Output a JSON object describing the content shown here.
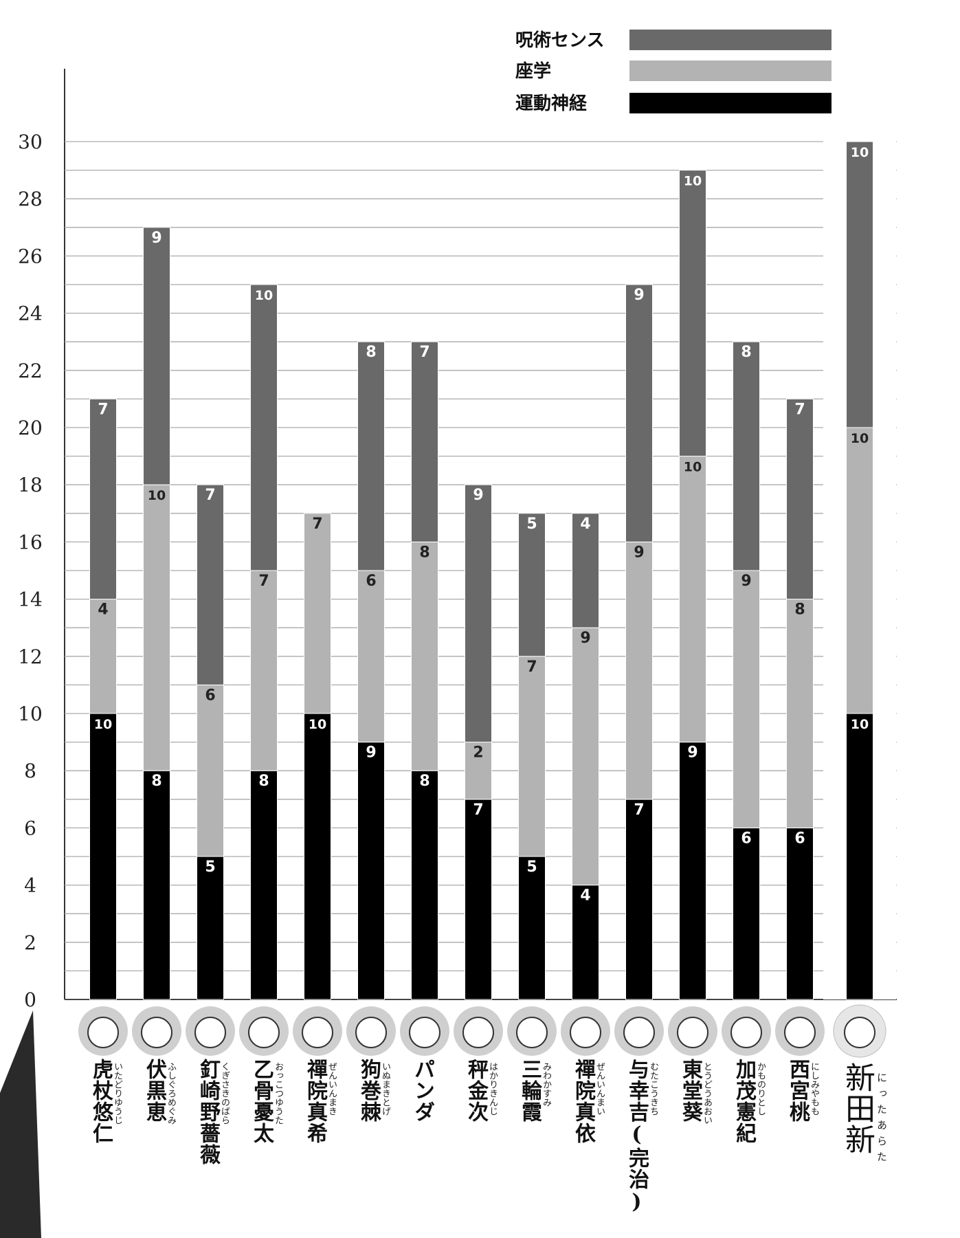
{
  "chart_data": {
    "type": "bar",
    "stacked": true,
    "title": "",
    "xlabel": "",
    "ylabel": "",
    "ylim": [
      0,
      30
    ],
    "yticks": [
      0,
      2,
      4,
      6,
      8,
      10,
      12,
      14,
      16,
      18,
      20,
      22,
      24,
      26,
      28,
      30
    ],
    "grid": "horizontal lines every 1 unit",
    "legend_position": "top-right",
    "categories": [
      "虎杖悠仁",
      "伏黒恵",
      "釘崎野薔薇",
      "乙骨憂太",
      "禪院真希",
      "狗巻棘",
      "パンダ",
      "秤金次",
      "三輪霞",
      "禪院真依",
      "与幸吉(完治)",
      "東堂葵",
      "加茂憲紀",
      "西宮桃",
      "新田新"
    ],
    "readings": [
      "いたどりゆうじ",
      "ふしぐろめぐみ",
      "くぎさきのばら",
      "おっこつゆうた",
      "ぜんいんまき",
      "いぬまきとげ",
      "",
      "はかりきんじ",
      "みわかすみ",
      "ぜんいんまい",
      "むたこうきち",
      "とうどうあおい",
      "かものりとし",
      "にしみやもも",
      "にったあらた"
    ],
    "series": [
      {
        "name": "運動神経",
        "color": "#000000",
        "values": [
          10,
          8,
          5,
          8,
          10,
          9,
          8,
          7,
          5,
          4,
          7,
          9,
          6,
          6,
          10
        ]
      },
      {
        "name": "座学",
        "color": "#b3b3b3",
        "values": [
          4,
          10,
          6,
          7,
          7,
          6,
          8,
          2,
          7,
          9,
          9,
          10,
          9,
          8,
          10
        ]
      },
      {
        "name": "呪術センス",
        "color": "#696969",
        "values": [
          7,
          9,
          7,
          10,
          0,
          8,
          7,
          9,
          5,
          4,
          9,
          10,
          8,
          7,
          10
        ]
      }
    ],
    "legend_order": [
      "呪術センス",
      "座学",
      "運動神経"
    ],
    "highlighted_category": "新田新"
  }
}
